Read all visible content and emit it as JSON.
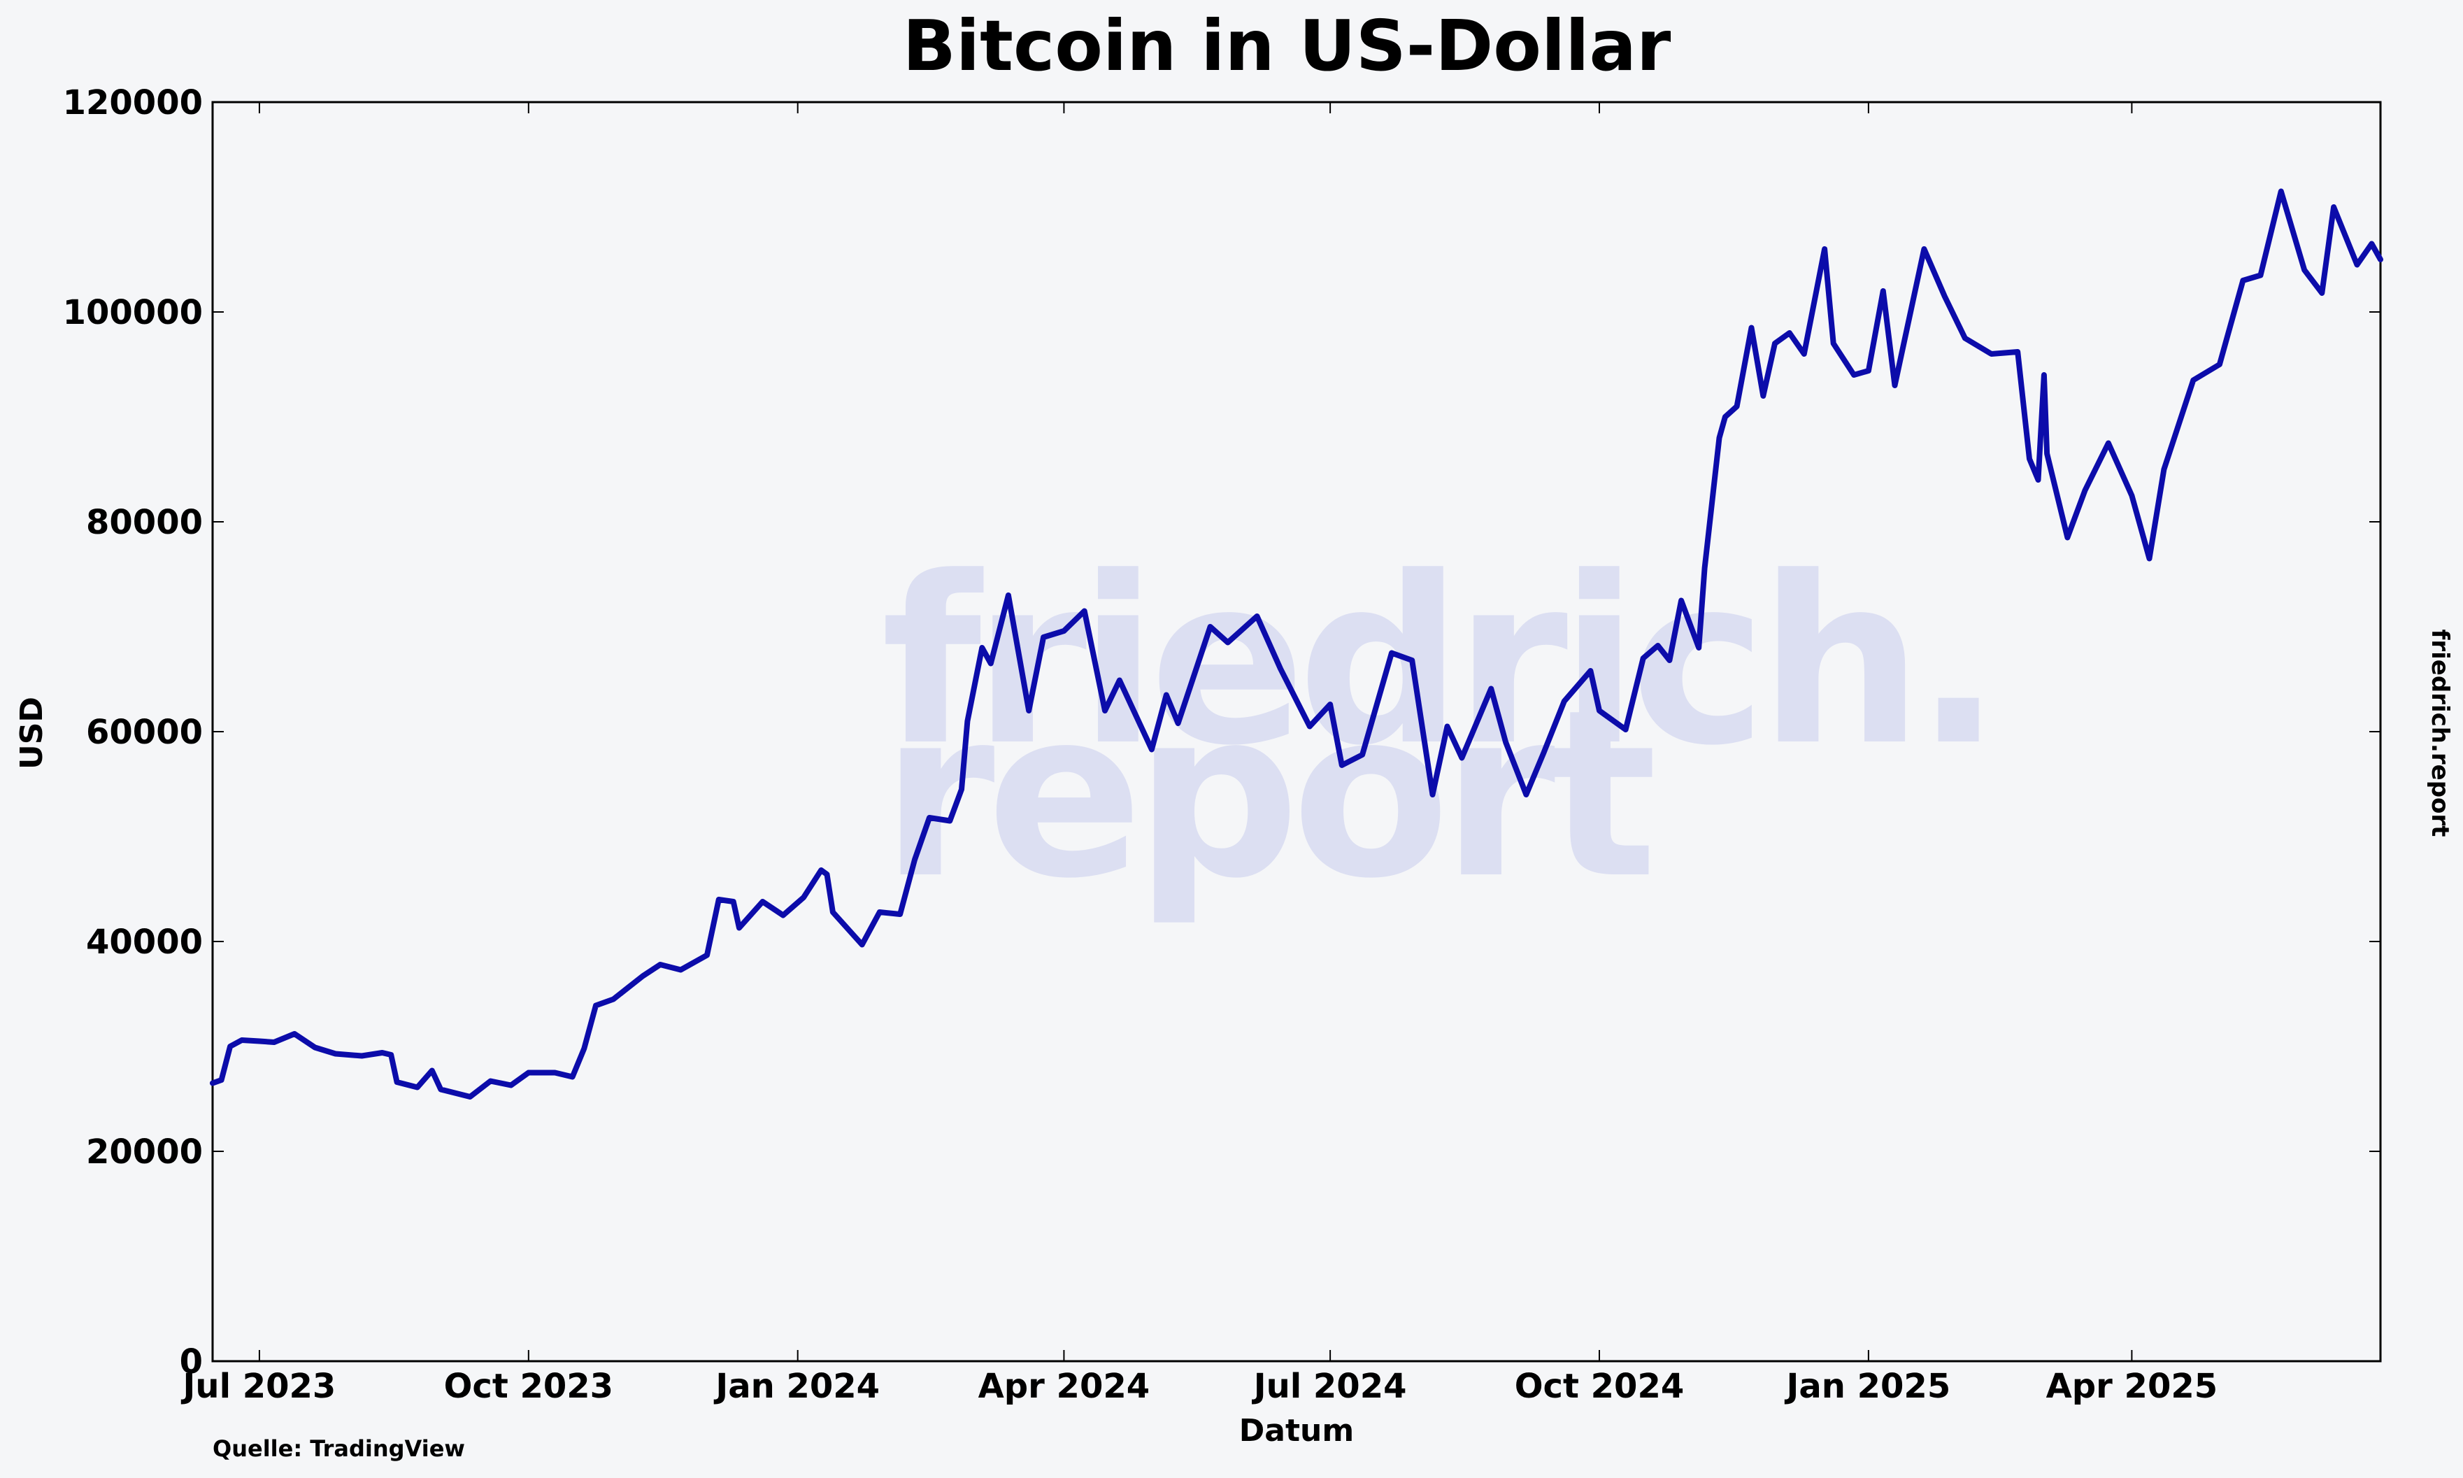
{
  "title": "Bitcoin in US-Dollar",
  "watermark": {
    "line1": "friedrich.",
    "line2": "report"
  },
  "side_label": "friedrich.report",
  "source": "Quelle: TradingView",
  "colors": {
    "line": "#0c0caa",
    "background": "#f5f6f8",
    "watermark": "#dcdff2",
    "axis": "#000000"
  },
  "chart_data": {
    "type": "line",
    "title": "Bitcoin in US-Dollar",
    "xlabel": "Datum",
    "ylabel": "USD",
    "xlim": [
      "2023-06-15",
      "2025-06-25"
    ],
    "ylim": [
      0,
      120000
    ],
    "grid": false,
    "legend": "none",
    "x_ticks": [
      {
        "date": "2023-07-01",
        "label": "Jul 2023"
      },
      {
        "date": "2023-10-01",
        "label": "Oct 2023"
      },
      {
        "date": "2024-01-01",
        "label": "Jan 2024"
      },
      {
        "date": "2024-04-01",
        "label": "Apr 2024"
      },
      {
        "date": "2024-07-01",
        "label": "Jul 2024"
      },
      {
        "date": "2024-10-01",
        "label": "Oct 2024"
      },
      {
        "date": "2025-01-01",
        "label": "Jan 2025"
      },
      {
        "date": "2025-04-01",
        "label": "Apr 2025"
      }
    ],
    "y_ticks": [
      0,
      20000,
      40000,
      60000,
      80000,
      100000,
      120000
    ],
    "series": [
      {
        "points": [
          [
            "2023-06-15",
            26500
          ],
          [
            "2023-06-18",
            26800
          ],
          [
            "2023-06-21",
            30000
          ],
          [
            "2023-06-25",
            30600
          ],
          [
            "2023-07-01",
            30500
          ],
          [
            "2023-07-06",
            30400
          ],
          [
            "2023-07-13",
            31200
          ],
          [
            "2023-07-20",
            29900
          ],
          [
            "2023-07-27",
            29300
          ],
          [
            "2023-08-05",
            29100
          ],
          [
            "2023-08-12",
            29400
          ],
          [
            "2023-08-15",
            29200
          ],
          [
            "2023-08-17",
            26600
          ],
          [
            "2023-08-24",
            26100
          ],
          [
            "2023-08-29",
            27700
          ],
          [
            "2023-09-01",
            25900
          ],
          [
            "2023-09-11",
            25200
          ],
          [
            "2023-09-18",
            26700
          ],
          [
            "2023-09-25",
            26300
          ],
          [
            "2023-10-01",
            27500
          ],
          [
            "2023-10-10",
            27500
          ],
          [
            "2023-10-16",
            27100
          ],
          [
            "2023-10-20",
            29800
          ],
          [
            "2023-10-24",
            33900
          ],
          [
            "2023-10-30",
            34500
          ],
          [
            "2023-11-09",
            36700
          ],
          [
            "2023-11-15",
            37800
          ],
          [
            "2023-11-22",
            37300
          ],
          [
            "2023-12-01",
            38700
          ],
          [
            "2023-12-05",
            44000
          ],
          [
            "2023-12-10",
            43800
          ],
          [
            "2023-12-12",
            41300
          ],
          [
            "2023-12-20",
            43800
          ],
          [
            "2023-12-27",
            42500
          ],
          [
            "2024-01-03",
            44200
          ],
          [
            "2024-01-09",
            46800
          ],
          [
            "2024-01-11",
            46400
          ],
          [
            "2024-01-13",
            42800
          ],
          [
            "2024-01-23",
            39700
          ],
          [
            "2024-01-29",
            42800
          ],
          [
            "2024-02-05",
            42600
          ],
          [
            "2024-02-10",
            47800
          ],
          [
            "2024-02-15",
            51800
          ],
          [
            "2024-02-22",
            51500
          ],
          [
            "2024-02-26",
            54500
          ],
          [
            "2024-02-28",
            61000
          ],
          [
            "2024-03-04",
            68000
          ],
          [
            "2024-03-07",
            66500
          ],
          [
            "2024-03-13",
            73000
          ],
          [
            "2024-03-20",
            62000
          ],
          [
            "2024-03-25",
            69000
          ],
          [
            "2024-04-01",
            69600
          ],
          [
            "2024-04-08",
            71500
          ],
          [
            "2024-04-15",
            62000
          ],
          [
            "2024-04-20",
            64900
          ],
          [
            "2024-05-01",
            58300
          ],
          [
            "2024-05-06",
            63500
          ],
          [
            "2024-05-10",
            60800
          ],
          [
            "2024-05-21",
            70000
          ],
          [
            "2024-05-27",
            68500
          ],
          [
            "2024-06-06",
            71000
          ],
          [
            "2024-06-14",
            66000
          ],
          [
            "2024-06-24",
            60500
          ],
          [
            "2024-07-01",
            62600
          ],
          [
            "2024-07-05",
            56800
          ],
          [
            "2024-07-12",
            57800
          ],
          [
            "2024-07-22",
            67500
          ],
          [
            "2024-07-29",
            66800
          ],
          [
            "2024-08-05",
            54000
          ],
          [
            "2024-08-10",
            60500
          ],
          [
            "2024-08-15",
            57500
          ],
          [
            "2024-08-25",
            64100
          ],
          [
            "2024-08-30",
            59000
          ],
          [
            "2024-09-06",
            54000
          ],
          [
            "2024-09-12",
            58000
          ],
          [
            "2024-09-19",
            62900
          ],
          [
            "2024-09-28",
            65800
          ],
          [
            "2024-10-01",
            62000
          ],
          [
            "2024-10-10",
            60200
          ],
          [
            "2024-10-16",
            67000
          ],
          [
            "2024-10-21",
            68200
          ],
          [
            "2024-10-25",
            66800
          ],
          [
            "2024-10-29",
            72500
          ],
          [
            "2024-11-04",
            68000
          ],
          [
            "2024-11-06",
            75600
          ],
          [
            "2024-11-11",
            88000
          ],
          [
            "2024-11-13",
            90000
          ],
          [
            "2024-11-17",
            91000
          ],
          [
            "2024-11-22",
            98500
          ],
          [
            "2024-11-26",
            92000
          ],
          [
            "2024-11-30",
            97000
          ],
          [
            "2024-12-05",
            98000
          ],
          [
            "2024-12-10",
            96000
          ],
          [
            "2024-12-17",
            106000
          ],
          [
            "2024-12-20",
            97000
          ],
          [
            "2024-12-27",
            94000
          ],
          [
            "2025-01-01",
            94400
          ],
          [
            "2025-01-06",
            102000
          ],
          [
            "2025-01-10",
            93000
          ],
          [
            "2025-01-20",
            106000
          ],
          [
            "2025-01-27",
            101500
          ],
          [
            "2025-02-03",
            97500
          ],
          [
            "2025-02-12",
            96000
          ],
          [
            "2025-02-21",
            96200
          ],
          [
            "2025-02-25",
            86000
          ],
          [
            "2025-02-28",
            84000
          ],
          [
            "2025-03-02",
            94000
          ],
          [
            "2025-03-03",
            86500
          ],
          [
            "2025-03-10",
            78500
          ],
          [
            "2025-03-16",
            83000
          ],
          [
            "2025-03-24",
            87500
          ],
          [
            "2025-04-01",
            82500
          ],
          [
            "2025-04-07",
            76500
          ],
          [
            "2025-04-12",
            85000
          ],
          [
            "2025-04-22",
            93500
          ],
          [
            "2025-05-01",
            95000
          ],
          [
            "2025-05-09",
            103000
          ],
          [
            "2025-05-15",
            103500
          ],
          [
            "2025-05-22",
            111500
          ],
          [
            "2025-05-30",
            104000
          ],
          [
            "2025-06-05",
            101800
          ],
          [
            "2025-06-09",
            110000
          ],
          [
            "2025-06-17",
            104500
          ],
          [
            "2025-06-22",
            106500
          ],
          [
            "2025-06-25",
            105000
          ]
        ]
      }
    ]
  }
}
